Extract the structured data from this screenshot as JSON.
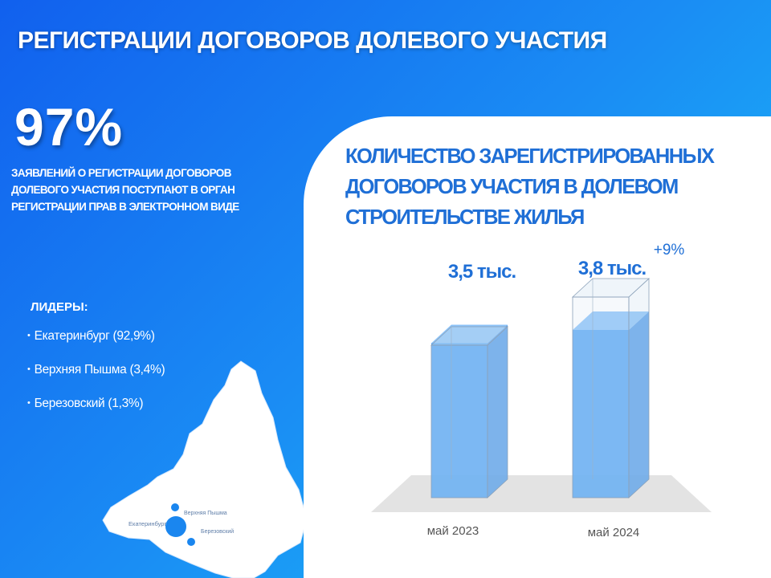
{
  "title": "РЕГИСТРАЦИИ ДОГОВОРОВ ДОЛЕВОГО УЧАСТИЯ",
  "stat": {
    "value": "97%",
    "caption": "ЗАЯВЛЕНИЙ О РЕГИСТРАЦИИ ДОГОВОРОВ ДОЛЕВОГО УЧАСТИЯ ПОСТУПАЮТ В ОРГАН РЕГИСТРАЦИИ ПРАВ В ЭЛЕКТРОННОМ ВИДЕ"
  },
  "leaders": {
    "heading": "ЛИДЕРЫ:",
    "items": [
      "Екатеринбург (92,9%)",
      "Верхняя Пышма (3,4%)",
      "Березовский (1,3%)"
    ]
  },
  "map_labels": {
    "city1": "Екатеринбург",
    "city2": "Верхняя Пышма",
    "city3": "Березовский"
  },
  "colors": {
    "brand_blue": "#1f6fd6",
    "bar_fill": "#4aa0f2",
    "background_start": "#1160ee",
    "background_end": "#1cc2f8"
  },
  "chart_data": {
    "type": "bar",
    "title": "КОЛИЧЕСТВО ЗАРЕГИСТРИРОВАННЫХ ДОГОВОРОВ УЧАСТИЯ В ДОЛЕВОМ СТРОИТЕЛЬСТВЕ ЖИЛЬЯ",
    "categories": [
      "май 2023",
      "май 2024"
    ],
    "values": [
      3.5,
      3.8
    ],
    "value_labels": [
      "3,5 тыс.",
      "3,8 тыс."
    ],
    "change_label": "+9%",
    "ylim": [
      0,
      4
    ],
    "style": "3d-transparent-box"
  }
}
